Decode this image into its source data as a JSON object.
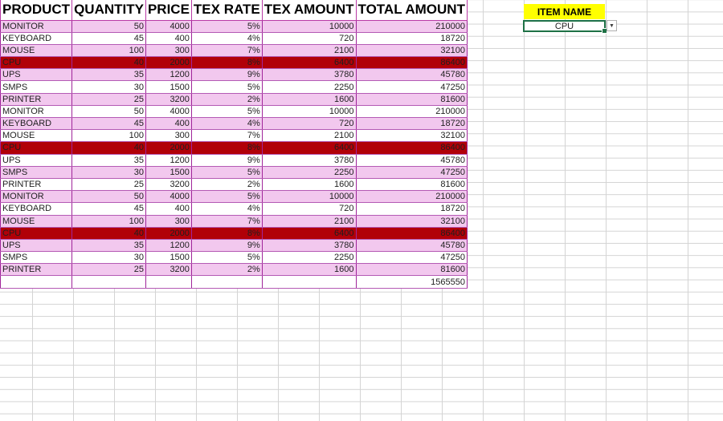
{
  "headers": [
    "PRODUCT",
    "QUANTITY",
    "PRICE",
    "TEX RATE",
    "TEX AMOUNT",
    "TOTAL AMOUNT"
  ],
  "rows": [
    [
      "MONITOR",
      "50",
      "4000",
      "5%",
      "10000",
      "210000"
    ],
    [
      "KEYBOARD",
      "45",
      "400",
      "4%",
      "720",
      "18720"
    ],
    [
      "MOUSE",
      "100",
      "300",
      "7%",
      "2100",
      "32100"
    ],
    [
      "CPU",
      "40",
      "2000",
      "8%",
      "6400",
      "86400"
    ],
    [
      "UPS",
      "35",
      "1200",
      "9%",
      "3780",
      "45780"
    ],
    [
      "SMPS",
      "30",
      "1500",
      "5%",
      "2250",
      "47250"
    ],
    [
      "PRINTER",
      "25",
      "3200",
      "2%",
      "1600",
      "81600"
    ],
    [
      "MONITOR",
      "50",
      "4000",
      "5%",
      "10000",
      "210000"
    ],
    [
      "KEYBOARD",
      "45",
      "400",
      "4%",
      "720",
      "18720"
    ],
    [
      "MOUSE",
      "100",
      "300",
      "7%",
      "2100",
      "32100"
    ],
    [
      "CPU",
      "40",
      "2000",
      "8%",
      "6400",
      "86400"
    ],
    [
      "UPS",
      "35",
      "1200",
      "9%",
      "3780",
      "45780"
    ],
    [
      "SMPS",
      "30",
      "1500",
      "5%",
      "2250",
      "47250"
    ],
    [
      "PRINTER",
      "25",
      "3200",
      "2%",
      "1600",
      "81600"
    ],
    [
      "MONITOR",
      "50",
      "4000",
      "5%",
      "10000",
      "210000"
    ],
    [
      "KEYBOARD",
      "45",
      "400",
      "4%",
      "720",
      "18720"
    ],
    [
      "MOUSE",
      "100",
      "300",
      "7%",
      "2100",
      "32100"
    ],
    [
      "CPU",
      "40",
      "2000",
      "8%",
      "6400",
      "86400"
    ],
    [
      "UPS",
      "35",
      "1200",
      "9%",
      "3780",
      "45780"
    ],
    [
      "SMPS",
      "30",
      "1500",
      "5%",
      "2250",
      "47250"
    ],
    [
      "PRINTER",
      "25",
      "3200",
      "2%",
      "1600",
      "81600"
    ]
  ],
  "grand_total": "1565550",
  "item_filter": {
    "label": "ITEM NAME",
    "selected": "CPU",
    "dropdown_icon": "chevron-down-icon"
  },
  "colors": {
    "header_border": "#b93aa6",
    "row_pink": "#f2c8ee",
    "row_highlight": "#b10008",
    "label_fill": "#ffff00",
    "selection_border": "#1e7145"
  }
}
